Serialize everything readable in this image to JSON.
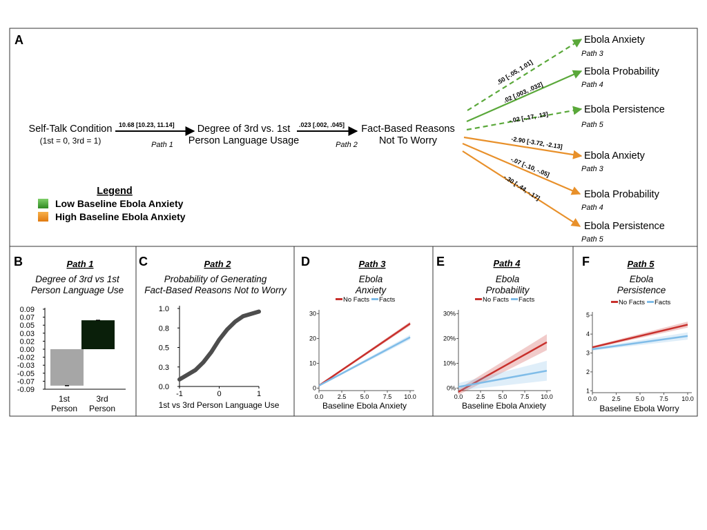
{
  "panelA": {
    "letter": "A",
    "selftalk": {
      "title": "Self-Talk Condition",
      "sub": "(1st = 0, 3rd = 1)"
    },
    "degree": {
      "line1": "Degree of 3rd vs. 1st",
      "line2": "Person Language Usage"
    },
    "factbased": {
      "line1": "Fact-Based Reasons",
      "line2": "Not To Worry"
    },
    "path1": {
      "coef": "10.68  [10.23, 11.14]",
      "label": "Path 1"
    },
    "path2": {
      "coef": ".023  [.002, .045]",
      "label": "Path 2"
    },
    "outcomes": [
      {
        "title": "Ebola Anxiety",
        "path": "Path 3",
        "coef": ".50  [-.05, 1.01]"
      },
      {
        "title": "Ebola Probability",
        "path": "Path 4",
        "coef": ".02  [.003, .032]"
      },
      {
        "title": "Ebola Persistence",
        "path": "Path 5",
        "coef": "-.02  [-.17, .13]"
      },
      {
        "title": "Ebola Anxiety",
        "path": "Path 3",
        "coef": "-2.90  [-3.72, -2.13]"
      },
      {
        "title": "Ebola Probability",
        "path": "Path 4",
        "coef": "-.07  [-.10, -.05]"
      },
      {
        "title": "Ebola Persistence",
        "path": "Path 5",
        "coef": "-.30  [-.44, -.17]"
      }
    ],
    "legend": {
      "title": "Legend",
      "low": "Low Baseline Ebola Anxiety",
      "high": "High Baseline Ebola Anxiety",
      "low_color": "#5aa83a",
      "high_color": "#e8902a"
    }
  },
  "panelB": {
    "letter": "B",
    "title": "Path 1",
    "sub1": "Degree of 3rd vs 1st",
    "sub2": "Person Language Use"
  },
  "panelC": {
    "letter": "C",
    "title": "Path 2",
    "sub1": "Probability of Generating",
    "sub2": "Fact-Based Reasons Not to Worry"
  },
  "panelD": {
    "letter": "D",
    "title": "Path 3",
    "sub1": "Ebola",
    "sub2": "Anxiety"
  },
  "panelE": {
    "letter": "E",
    "title": "Path 4",
    "sub1": "Ebola",
    "sub2": "Probability"
  },
  "panelF": {
    "letter": "F",
    "title": "Path 5",
    "sub1": "Ebola",
    "sub2": "Persistence"
  },
  "chart_data": [
    {
      "id": "B",
      "type": "bar",
      "categories": [
        "1st Person",
        "3rd Person"
      ],
      "values": [
        -0.082,
        0.065
      ],
      "colors": [
        "#a6a6a6",
        "#0a1f0a"
      ],
      "yticks": [
        "0.09",
        "0.07",
        "0.05",
        "0.03",
        "0.02",
        "0.00",
        "-0.02",
        "-0.03",
        "-0.05",
        "-0.07",
        "-0.09"
      ],
      "ylim": [
        -0.09,
        0.09
      ]
    },
    {
      "id": "C",
      "type": "line",
      "xlabel": "1st vs 3rd Person Language Use",
      "xlim": [
        -1,
        1
      ],
      "ylim": [
        0,
        1
      ],
      "xticks": [
        "-1",
        "0",
        "1"
      ],
      "yticks": [
        "1.0",
        "0.8",
        "0.5",
        "0.3",
        "0.0"
      ],
      "x": [
        -1,
        -0.8,
        -0.6,
        -0.4,
        -0.2,
        0,
        0.2,
        0.4,
        0.6,
        0.8,
        1
      ],
      "y": [
        0.09,
        0.15,
        0.21,
        0.31,
        0.44,
        0.6,
        0.73,
        0.83,
        0.9,
        0.93,
        0.96
      ]
    },
    {
      "id": "D",
      "type": "line",
      "xlabel": "Baseline Ebola Anxiety",
      "xlim": [
        0,
        10
      ],
      "ylim": [
        -1,
        31
      ],
      "xticks": [
        "0.0",
        "2.5",
        "5.0",
        "7.5",
        "10.0"
      ],
      "yticks": [
        "30",
        "20",
        "10",
        "0"
      ],
      "series": [
        {
          "name": "No Facts",
          "x": [
            0,
            10
          ],
          "y": [
            1,
            26
          ],
          "band": 0.5,
          "color": "#c8302c"
        },
        {
          "name": "Facts",
          "x": [
            0,
            10
          ],
          "y": [
            1,
            20.5
          ],
          "band": 0.6,
          "color": "#7fbce8"
        }
      ]
    },
    {
      "id": "E",
      "type": "line",
      "xlabel": "Baseline Ebola Anxiety",
      "xlim": [
        0,
        10
      ],
      "ylim": [
        -1,
        31
      ],
      "xticks": [
        "0.0",
        "2.5",
        "5.0",
        "7.5",
        "10.0"
      ],
      "yticks": [
        "30%",
        "20%",
        "10%",
        "0%"
      ],
      "series": [
        {
          "name": "No Facts",
          "x": [
            0,
            10
          ],
          "y": [
            -1.5,
            18.5
          ],
          "band": 2,
          "color": "#c8302c"
        },
        {
          "name": "Facts",
          "x": [
            0,
            10
          ],
          "y": [
            0.5,
            7
          ],
          "band": 2.5,
          "color": "#7fbce8"
        }
      ]
    },
    {
      "id": "F",
      "type": "line",
      "xlabel": "Baseline Ebola Worry",
      "xlim": [
        0,
        10
      ],
      "ylim": [
        0.9,
        5.1
      ],
      "xticks": [
        "0.0",
        "2.5",
        "5.0",
        "7.5",
        "10.0"
      ],
      "yticks": [
        "5",
        "4",
        "3",
        "2",
        "1"
      ],
      "series": [
        {
          "name": "No Facts",
          "x": [
            0,
            10
          ],
          "y": [
            3.3,
            4.5
          ],
          "band": 0.1,
          "color": "#c8302c"
        },
        {
          "name": "Facts",
          "x": [
            0,
            10
          ],
          "y": [
            3.2,
            3.9
          ],
          "band": 0.12,
          "color": "#7fbce8"
        }
      ]
    }
  ]
}
